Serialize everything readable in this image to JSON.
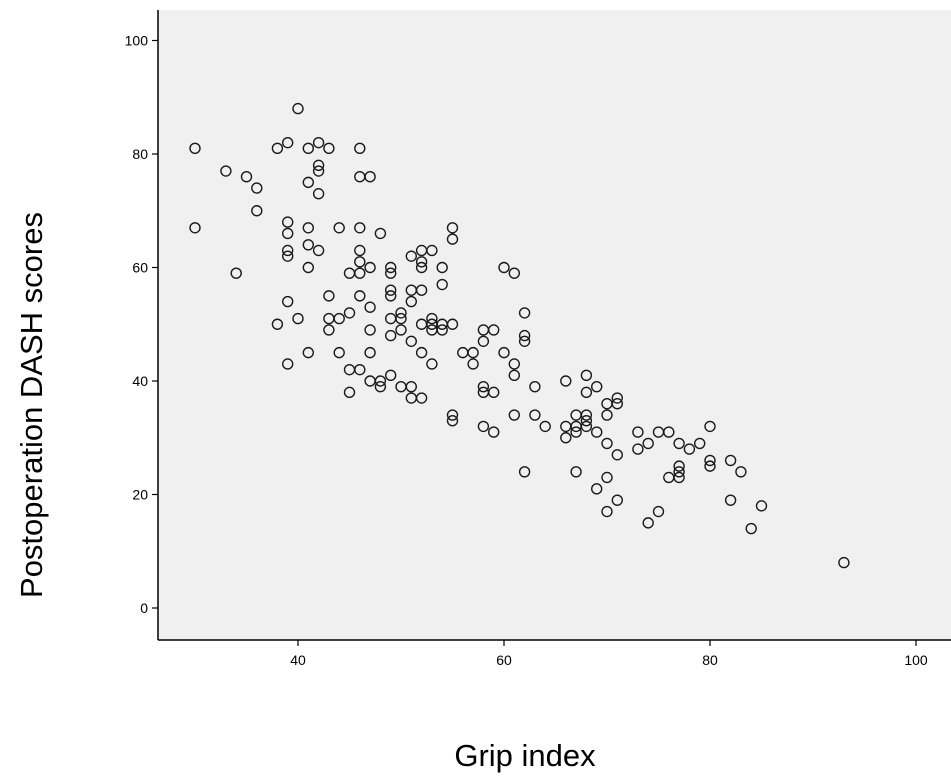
{
  "chart_data": {
    "type": "scatter",
    "title": "",
    "xlabel": "Grip index",
    "ylabel": "Postoperation  DASH scores",
    "xlim": [
      27,
      102
    ],
    "ylim": [
      -5,
      105
    ],
    "xticks": [
      40,
      60,
      80,
      100
    ],
    "yticks": [
      0,
      20,
      40,
      60,
      80,
      100
    ],
    "xtick_labels": [
      "40",
      "60",
      "80",
      "100"
    ],
    "ytick_labels": [
      "0",
      "20",
      "40",
      "60",
      "80",
      "100"
    ],
    "grid": false,
    "legend": "none",
    "colors": {
      "plot_background": "#f0f0f0",
      "marker_stroke": "#1a1a1a",
      "axis": "#000000"
    },
    "series": [
      {
        "marker": "hollow-circle",
        "points": [
          [
            30,
            81
          ],
          [
            30,
            67
          ],
          [
            33,
            77
          ],
          [
            34,
            59
          ],
          [
            35,
            76
          ],
          [
            36,
            74
          ],
          [
            36,
            70
          ],
          [
            38,
            81
          ],
          [
            38,
            50
          ],
          [
            39,
            82
          ],
          [
            39,
            68
          ],
          [
            39,
            66
          ],
          [
            39,
            63
          ],
          [
            39,
            62
          ],
          [
            39,
            54
          ],
          [
            39,
            43
          ],
          [
            40,
            88
          ],
          [
            40,
            51
          ],
          [
            41,
            81
          ],
          [
            41,
            75
          ],
          [
            41,
            67
          ],
          [
            41,
            64
          ],
          [
            41,
            60
          ],
          [
            41,
            45
          ],
          [
            42,
            82
          ],
          [
            42,
            78
          ],
          [
            42,
            77
          ],
          [
            42,
            73
          ],
          [
            42,
            63
          ],
          [
            43,
            81
          ],
          [
            43,
            55
          ],
          [
            43,
            51
          ],
          [
            43,
            49
          ],
          [
            44,
            67
          ],
          [
            44,
            51
          ],
          [
            44,
            45
          ],
          [
            45,
            59
          ],
          [
            45,
            52
          ],
          [
            45,
            42
          ],
          [
            45,
            38
          ],
          [
            46,
            81
          ],
          [
            46,
            76
          ],
          [
            46,
            67
          ],
          [
            46,
            63
          ],
          [
            46,
            61
          ],
          [
            46,
            59
          ],
          [
            46,
            55
          ],
          [
            46,
            42
          ],
          [
            47,
            76
          ],
          [
            47,
            60
          ],
          [
            47,
            53
          ],
          [
            47,
            49
          ],
          [
            47,
            45
          ],
          [
            47,
            40
          ],
          [
            48,
            66
          ],
          [
            48,
            40
          ],
          [
            48,
            39
          ],
          [
            49,
            60
          ],
          [
            49,
            59
          ],
          [
            49,
            56
          ],
          [
            49,
            55
          ],
          [
            49,
            51
          ],
          [
            49,
            48
          ],
          [
            49,
            41
          ],
          [
            50,
            52
          ],
          [
            50,
            51
          ],
          [
            50,
            49
          ],
          [
            50,
            39
          ],
          [
            51,
            62
          ],
          [
            51,
            56
          ],
          [
            51,
            54
          ],
          [
            51,
            47
          ],
          [
            51,
            39
          ],
          [
            51,
            37
          ],
          [
            52,
            63
          ],
          [
            52,
            61
          ],
          [
            52,
            60
          ],
          [
            52,
            56
          ],
          [
            52,
            50
          ],
          [
            52,
            45
          ],
          [
            52,
            37
          ],
          [
            53,
            63
          ],
          [
            53,
            51
          ],
          [
            53,
            50
          ],
          [
            53,
            49
          ],
          [
            53,
            43
          ],
          [
            54,
            60
          ],
          [
            54,
            57
          ],
          [
            54,
            50
          ],
          [
            54,
            49
          ],
          [
            55,
            67
          ],
          [
            55,
            65
          ],
          [
            55,
            50
          ],
          [
            55,
            34
          ],
          [
            55,
            33
          ],
          [
            56,
            45
          ],
          [
            57,
            45
          ],
          [
            57,
            43
          ],
          [
            58,
            49
          ],
          [
            58,
            47
          ],
          [
            58,
            39
          ],
          [
            58,
            38
          ],
          [
            58,
            32
          ],
          [
            59,
            49
          ],
          [
            59,
            38
          ],
          [
            59,
            31
          ],
          [
            60,
            60
          ],
          [
            60,
            45
          ],
          [
            61,
            59
          ],
          [
            61,
            43
          ],
          [
            61,
            41
          ],
          [
            61,
            34
          ],
          [
            62,
            52
          ],
          [
            62,
            48
          ],
          [
            62,
            47
          ],
          [
            62,
            24
          ],
          [
            63,
            39
          ],
          [
            63,
            34
          ],
          [
            64,
            32
          ],
          [
            66,
            40
          ],
          [
            66,
            32
          ],
          [
            66,
            30
          ],
          [
            67,
            34
          ],
          [
            67,
            32
          ],
          [
            67,
            31
          ],
          [
            67,
            24
          ],
          [
            68,
            41
          ],
          [
            68,
            38
          ],
          [
            68,
            34
          ],
          [
            68,
            33
          ],
          [
            68,
            32
          ],
          [
            69,
            39
          ],
          [
            69,
            31
          ],
          [
            69,
            21
          ],
          [
            70,
            36
          ],
          [
            70,
            34
          ],
          [
            70,
            29
          ],
          [
            70,
            23
          ],
          [
            70,
            17
          ],
          [
            71,
            37
          ],
          [
            71,
            36
          ],
          [
            71,
            27
          ],
          [
            71,
            19
          ],
          [
            73,
            31
          ],
          [
            73,
            28
          ],
          [
            74,
            29
          ],
          [
            74,
            15
          ],
          [
            75,
            31
          ],
          [
            75,
            17
          ],
          [
            76,
            31
          ],
          [
            76,
            23
          ],
          [
            77,
            29
          ],
          [
            77,
            25
          ],
          [
            77,
            24
          ],
          [
            77,
            23
          ],
          [
            78,
            28
          ],
          [
            79,
            29
          ],
          [
            80,
            32
          ],
          [
            80,
            26
          ],
          [
            80,
            25
          ],
          [
            82,
            26
          ],
          [
            82,
            19
          ],
          [
            83,
            24
          ],
          [
            84,
            14
          ],
          [
            85,
            18
          ],
          [
            93,
            8
          ]
        ]
      }
    ]
  }
}
